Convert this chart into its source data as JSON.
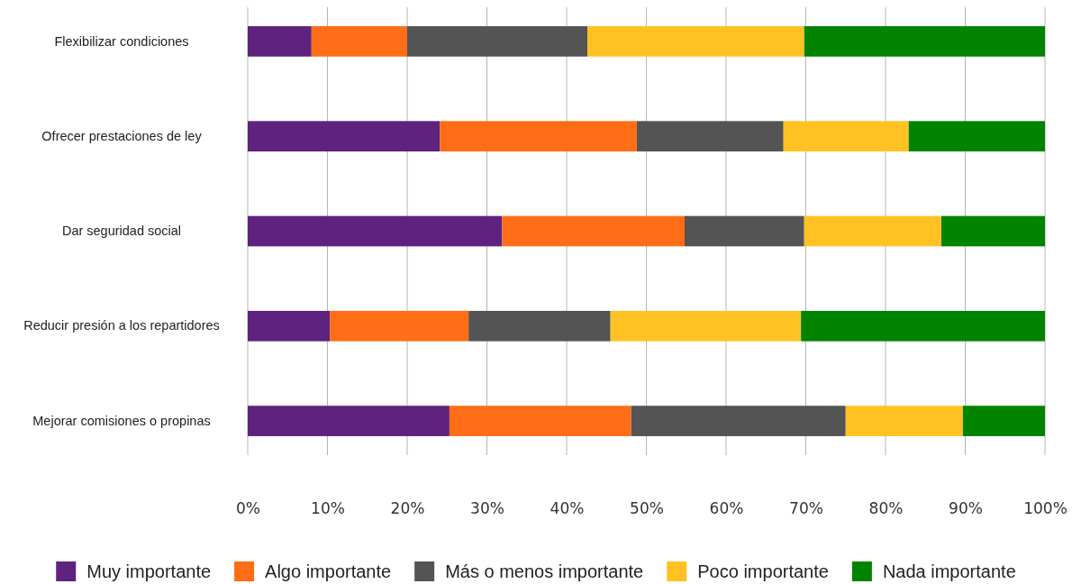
{
  "chart_data": {
    "type": "bar",
    "orientation": "horizontal",
    "stacked": true,
    "categories": [
      "Flexibilizar condiciones",
      "Ofrecer prestaciones de ley",
      "Dar seguridad social",
      "Reducir presión a los repartidores",
      "Mejorar comisiones o propinas"
    ],
    "series": [
      {
        "name": "Muy importante",
        "color": "#5e227f",
        "values": [
          8,
          24.1,
          31.9,
          10.3,
          25.3
        ]
      },
      {
        "name": "Algo importante",
        "color": "#ff6d16",
        "values": [
          12,
          24.7,
          22.9,
          17.4,
          22.8
        ]
      },
      {
        "name": "Más o menos importante",
        "color": "#545454",
        "values": [
          22.6,
          18.4,
          15,
          17.8,
          26.9
        ]
      },
      {
        "name": "Poco importante",
        "color": "#ffc222",
        "values": [
          27.2,
          15.7,
          17.2,
          23.9,
          14.7
        ]
      },
      {
        "name": "Nada importante",
        "color": "#008400",
        "values": [
          30.2,
          17.1,
          13,
          30.6,
          10.3
        ]
      }
    ],
    "xlim": [
      0,
      100
    ],
    "xticks": [
      {
        "value": 0,
        "label": "0%"
      },
      {
        "value": 10,
        "label": "10%"
      },
      {
        "value": 20,
        "label": "20%"
      },
      {
        "value": 30,
        "label": "30%"
      },
      {
        "value": 40,
        "label": "40%"
      },
      {
        "value": 50,
        "label": "50%"
      },
      {
        "value": 60,
        "label": "60%"
      },
      {
        "value": 70,
        "label": "70%"
      },
      {
        "value": 80,
        "label": "80%"
      },
      {
        "value": 90,
        "label": "90%"
      },
      {
        "value": 100,
        "label": "100%"
      }
    ],
    "grid": "x",
    "legend": "bottom"
  }
}
